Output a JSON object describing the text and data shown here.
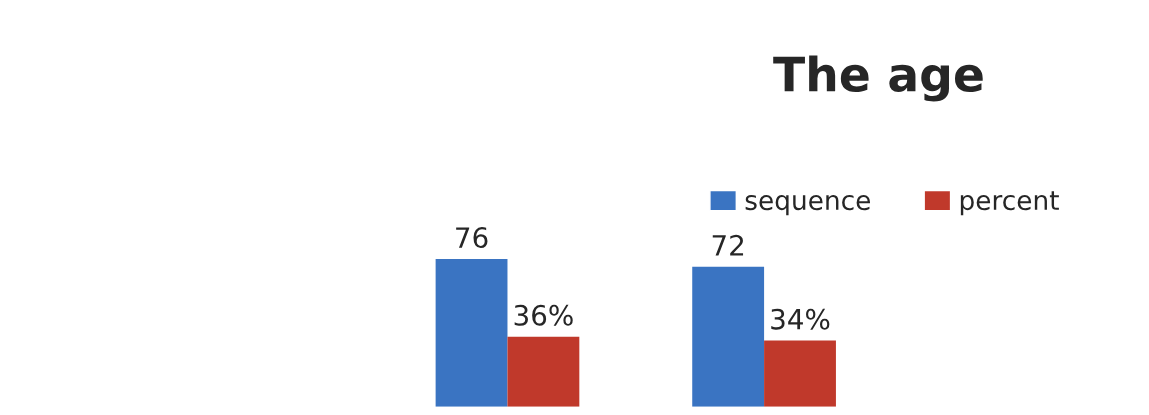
{
  "chart_data": {
    "type": "bar",
    "title": "The age",
    "categories": [
      null,
      null
    ],
    "series": [
      {
        "name": "sequence",
        "color": "#3a74c2",
        "values": [
          76,
          72
        ],
        "value_labels": [
          "76",
          "72"
        ]
      },
      {
        "name": "percent",
        "color": "#c0392b",
        "values": [
          36,
          34
        ],
        "value_labels": [
          "36%",
          "34%"
        ]
      }
    ],
    "legend": "top",
    "grid": false
  }
}
